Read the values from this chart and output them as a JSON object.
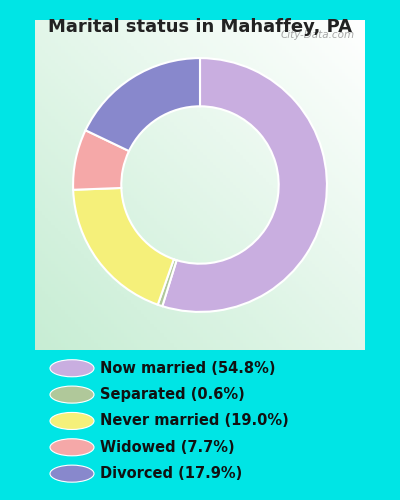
{
  "title": "Marital status in Mahaffey, PA",
  "slices": [
    54.8,
    0.6,
    19.0,
    7.7,
    17.9
  ],
  "labels": [
    "Now married (54.8%)",
    "Separated (0.6%)",
    "Never married (19.0%)",
    "Widowed (7.7%)",
    "Divorced (17.9%)"
  ],
  "colors": [
    "#c9aee0",
    "#b0c89a",
    "#f5f07a",
    "#f5a8a8",
    "#8888cc"
  ],
  "cyan_bg": "#00e5e5",
  "chart_bg_color": "#d4ede0",
  "title_color": "#222222",
  "title_fontsize": 13,
  "legend_fontsize": 10.5,
  "watermark": "City-Data.com",
  "start_angle": 90,
  "donut_width": 0.38
}
